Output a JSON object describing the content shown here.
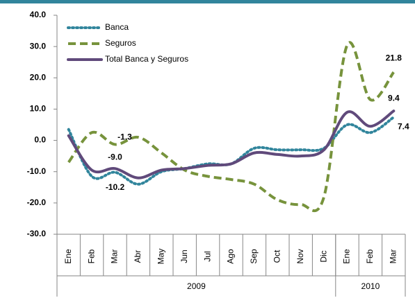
{
  "chart_data": {
    "type": "line",
    "groups": [
      {
        "label": "2009",
        "categories": [
          "Ene",
          "Feb",
          "Mar",
          "Abr",
          "May",
          "Jun",
          "Jul",
          "Ago",
          "Sep",
          "Oct",
          "Nov",
          "Dic"
        ]
      },
      {
        "label": "2010",
        "categories": [
          "Ene",
          "Feb",
          "Mar"
        ]
      }
    ],
    "series": [
      {
        "name": "Banca",
        "color": "#31859c",
        "style": "dotted",
        "values": [
          3.5,
          -11.5,
          -10.2,
          -14,
          -10,
          -9,
          -7.5,
          -7.5,
          -2.5,
          -3,
          -3,
          -2.5,
          5,
          2.5,
          7.4
        ],
        "value_labels": [
          null,
          null,
          "-10.2",
          null,
          null,
          null,
          null,
          null,
          null,
          null,
          null,
          null,
          null,
          null,
          "7.4"
        ]
      },
      {
        "name": "Seguros",
        "color": "#77933c",
        "style": "dashed",
        "values": [
          -7,
          2.5,
          -1.3,
          1,
          -4,
          -9.5,
          -11.5,
          -12.5,
          -14,
          -19,
          -20.5,
          -18,
          30.5,
          13,
          21.8
        ],
        "value_labels": [
          null,
          null,
          "-1.3",
          null,
          null,
          null,
          null,
          null,
          null,
          null,
          null,
          null,
          null,
          null,
          "21.8"
        ]
      },
      {
        "name": "Total Banca y Seguros",
        "color": "#604a7b",
        "style": "solid",
        "values": [
          1.5,
          -9.5,
          -9,
          -12,
          -9.5,
          -9,
          -8,
          -7.5,
          -4,
          -4.5,
          -5,
          -3,
          9,
          4.5,
          9.4
        ],
        "value_labels": [
          null,
          null,
          "-9.0",
          null,
          null,
          null,
          null,
          null,
          null,
          null,
          null,
          null,
          null,
          null,
          "9.4"
        ]
      }
    ],
    "ylim": [
      -30,
      40
    ],
    "yticks": [
      {
        "value": -30,
        "label": "-30.0"
      },
      {
        "value": -20,
        "label": "-20.0"
      },
      {
        "value": -10,
        "label": "-10.0"
      },
      {
        "value": 0,
        "label": "0.0"
      },
      {
        "value": 10,
        "label": "10.0"
      },
      {
        "value": 20,
        "label": "20.0"
      },
      {
        "value": 30,
        "label": "30.0"
      },
      {
        "value": 40,
        "label": "40.0"
      }
    ],
    "grid": false,
    "legend": "top-left"
  }
}
